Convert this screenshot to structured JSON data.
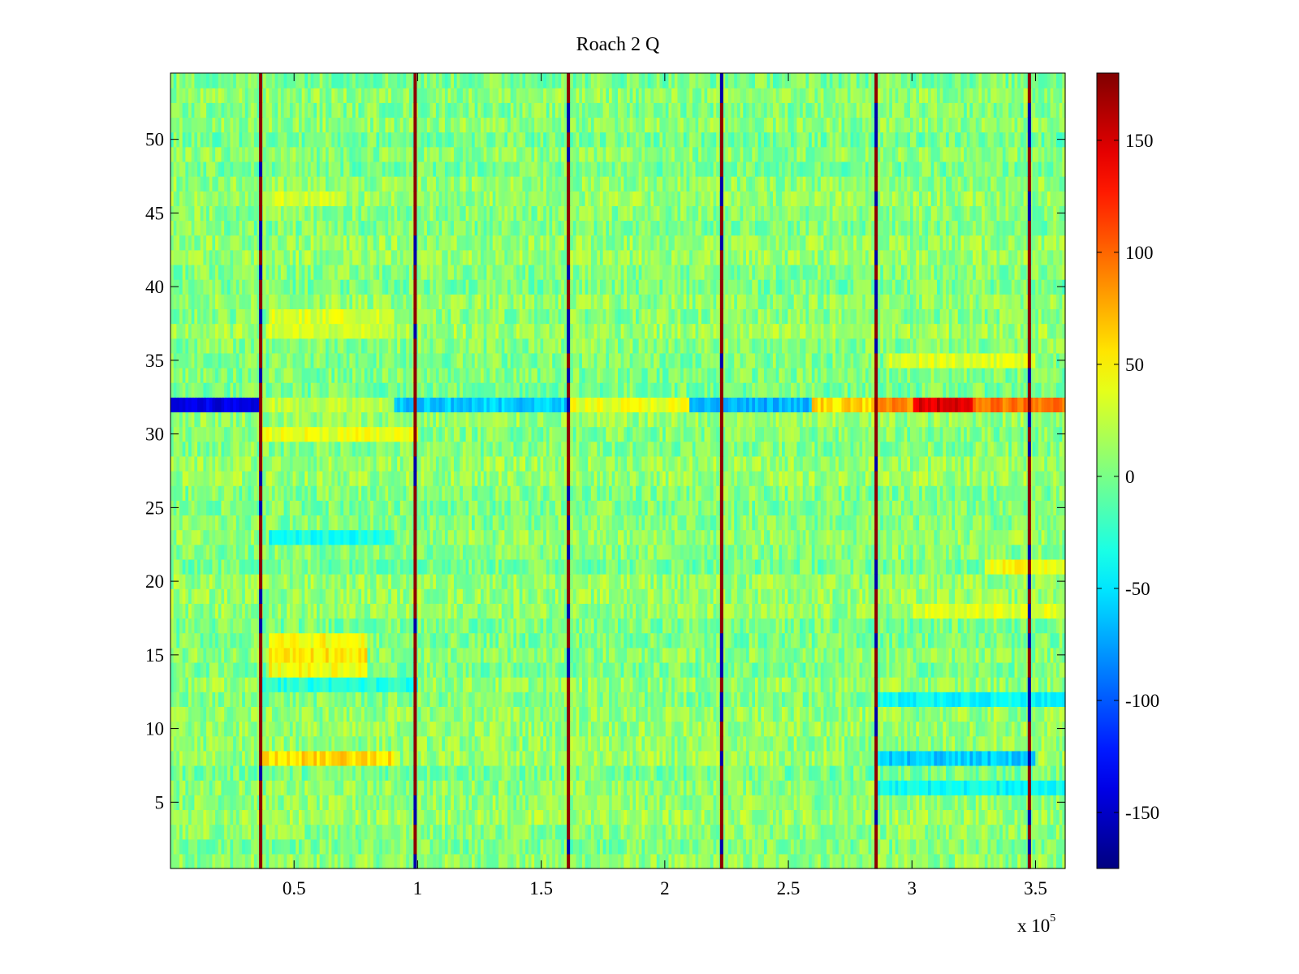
{
  "chart_data": {
    "type": "heatmap",
    "title": "Roach 2 Q",
    "xlabel": "",
    "ylabel": "",
    "x_scale_base": "x 10",
    "x_scale_exponent": "5",
    "xlim": [
      0.0,
      3.62
    ],
    "ylim": [
      0.5,
      54.5
    ],
    "x_ticks": [
      0.5,
      1,
      1.5,
      2,
      2.5,
      3,
      3.5
    ],
    "x_tick_labels": [
      "0.5",
      "1",
      "1.5",
      "2",
      "2.5",
      "3",
      "3.5"
    ],
    "y_ticks": [
      5,
      10,
      15,
      20,
      25,
      30,
      35,
      40,
      45,
      50
    ],
    "y_tick_labels": [
      "5",
      "10",
      "15",
      "20",
      "25",
      "30",
      "35",
      "40",
      "45",
      "50"
    ],
    "rows": 54,
    "colorbar": {
      "colormap": "jet",
      "clim": [
        -175,
        180
      ],
      "ticks": [
        -150,
        -100,
        -50,
        0,
        50,
        100,
        150
      ],
      "tick_labels": [
        "-150",
        "-100",
        "-50",
        "0",
        "50",
        "100",
        "150"
      ]
    },
    "background_level": 5,
    "noise_amplitude": 22,
    "vertical_stripes": [
      {
        "x": 0.365,
        "low": -160,
        "high": 175
      },
      {
        "x": 0.99,
        "low": -160,
        "high": 175
      },
      {
        "x": 1.61,
        "low": -160,
        "high": 175
      },
      {
        "x": 2.23,
        "low": -160,
        "high": 175
      },
      {
        "x": 2.855,
        "low": -160,
        "high": 175
      },
      {
        "x": 3.475,
        "low": -160,
        "high": 175
      }
    ],
    "row_features": [
      {
        "row": 32,
        "x_start": 0.0,
        "x_end": 0.36,
        "value": -140
      },
      {
        "row": 32,
        "x_start": 0.36,
        "x_end": 0.9,
        "value": 25
      },
      {
        "row": 32,
        "x_start": 0.9,
        "x_end": 1.6,
        "value": -60
      },
      {
        "row": 32,
        "x_start": 1.6,
        "x_end": 2.1,
        "value": 40
      },
      {
        "row": 32,
        "x_start": 2.1,
        "x_end": 2.6,
        "value": -70
      },
      {
        "row": 32,
        "x_start": 2.6,
        "x_end": 2.85,
        "value": 60
      },
      {
        "row": 32,
        "x_start": 2.85,
        "x_end": 3.0,
        "value": 90
      },
      {
        "row": 32,
        "x_start": 3.0,
        "x_end": 3.25,
        "value": 150
      },
      {
        "row": 32,
        "x_start": 3.25,
        "x_end": 3.62,
        "value": 95
      },
      {
        "row": 8,
        "x_start": 0.36,
        "x_end": 0.9,
        "value": 60
      },
      {
        "row": 8,
        "x_start": 2.85,
        "x_end": 3.5,
        "value": -60
      },
      {
        "row": 15,
        "x_start": 0.4,
        "x_end": 0.8,
        "value": 55
      },
      {
        "row": 16,
        "x_start": 0.4,
        "x_end": 0.8,
        "value": 45
      },
      {
        "row": 14,
        "x_start": 0.4,
        "x_end": 0.8,
        "value": 45
      },
      {
        "row": 30,
        "x_start": 0.36,
        "x_end": 1.0,
        "value": 40
      },
      {
        "row": 13,
        "x_start": 0.36,
        "x_end": 1.0,
        "value": -30
      },
      {
        "row": 12,
        "x_start": 2.85,
        "x_end": 3.62,
        "value": -40
      },
      {
        "row": 18,
        "x_start": 3.0,
        "x_end": 3.62,
        "value": 35
      },
      {
        "row": 21,
        "x_start": 3.3,
        "x_end": 3.62,
        "value": 45
      },
      {
        "row": 35,
        "x_start": 2.9,
        "x_end": 3.5,
        "value": 35
      },
      {
        "row": 38,
        "x_start": 0.4,
        "x_end": 0.9,
        "value": 35
      },
      {
        "row": 37,
        "x_start": 0.4,
        "x_end": 0.9,
        "value": 30
      },
      {
        "row": 46,
        "x_start": 0.4,
        "x_end": 0.7,
        "value": 30
      },
      {
        "row": 23,
        "x_start": 0.4,
        "x_end": 0.9,
        "value": -35
      },
      {
        "row": 6,
        "x_start": 2.85,
        "x_end": 3.62,
        "value": -40
      }
    ]
  }
}
